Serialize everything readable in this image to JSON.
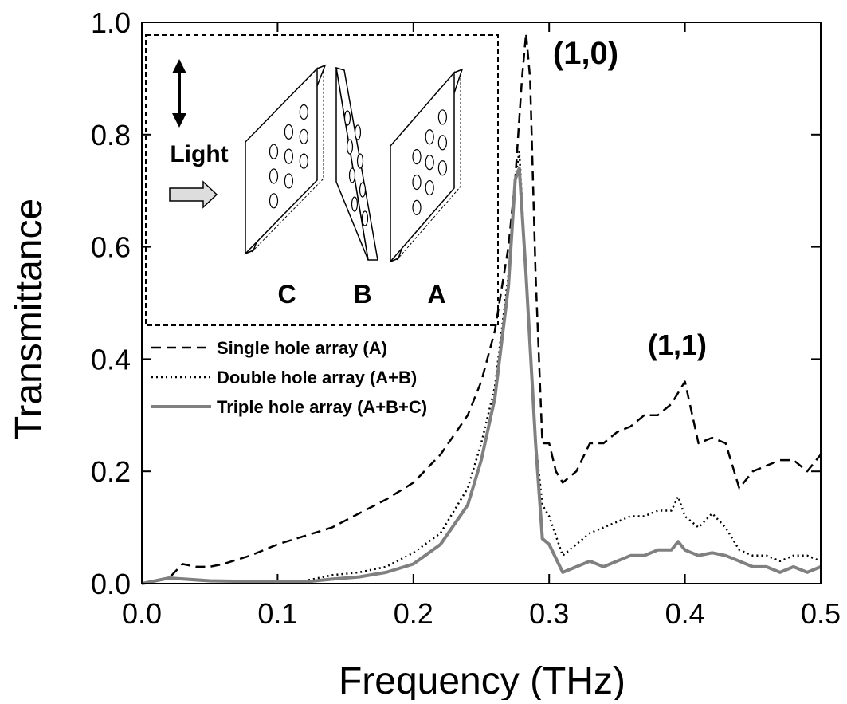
{
  "chart_data": {
    "type": "line",
    "xlabel": "Frequency (THz)",
    "ylabel": "Transmittance",
    "xlim": [
      0,
      0.5
    ],
    "ylim": [
      0,
      1
    ],
    "xticks": [
      {
        "value": 0,
        "label": "0.0"
      },
      {
        "value": 0.1,
        "label": "0.1"
      },
      {
        "value": 0.2,
        "label": "0.2"
      },
      {
        "value": 0.3,
        "label": "0.3"
      },
      {
        "value": 0.4,
        "label": "0.4"
      },
      {
        "value": 0.5,
        "label": "0.5"
      }
    ],
    "yticks": [
      {
        "value": 0,
        "label": "0.0"
      },
      {
        "value": 0.2,
        "label": "0.2"
      },
      {
        "value": 0.4,
        "label": "0.4"
      },
      {
        "value": 0.6,
        "label": "0.6"
      },
      {
        "value": 0.8,
        "label": "0.8"
      },
      {
        "value": 1,
        "label": "1.0"
      }
    ],
    "legend": "upper left",
    "annotations": [
      "(1,0)",
      "(1,1)",
      "Light",
      "C",
      "B",
      "A"
    ],
    "series": [
      {
        "name": "Single hole array (A)",
        "color": "#000000",
        "style": "dashed",
        "x": [
          0,
          0.02,
          0.03,
          0.04,
          0.05,
          0.06,
          0.08,
          0.1,
          0.12,
          0.14,
          0.16,
          0.18,
          0.2,
          0.22,
          0.24,
          0.25,
          0.26,
          0.27,
          0.275,
          0.28,
          0.283,
          0.286,
          0.29,
          0.295,
          0.3,
          0.305,
          0.31,
          0.32,
          0.33,
          0.34,
          0.35,
          0.36,
          0.37,
          0.38,
          0.39,
          0.4,
          0.41,
          0.42,
          0.43,
          0.44,
          0.45,
          0.46,
          0.47,
          0.48,
          0.49,
          0.5
        ],
        "values": [
          0,
          0.01,
          0.035,
          0.03,
          0.03,
          0.035,
          0.05,
          0.07,
          0.085,
          0.1,
          0.125,
          0.15,
          0.18,
          0.23,
          0.3,
          0.36,
          0.45,
          0.6,
          0.72,
          0.9,
          0.98,
          0.9,
          0.55,
          0.25,
          0.25,
          0.2,
          0.18,
          0.2,
          0.25,
          0.25,
          0.27,
          0.28,
          0.3,
          0.3,
          0.32,
          0.36,
          0.25,
          0.26,
          0.25,
          0.17,
          0.2,
          0.21,
          0.22,
          0.22,
          0.2,
          0.23
        ]
      },
      {
        "name": "Double hole array (A+B)",
        "color": "#000000",
        "style": "dotted",
        "x": [
          0,
          0.02,
          0.05,
          0.1,
          0.12,
          0.14,
          0.16,
          0.18,
          0.2,
          0.22,
          0.24,
          0.25,
          0.26,
          0.27,
          0.275,
          0.278,
          0.283,
          0.29,
          0.295,
          0.3,
          0.31,
          0.32,
          0.33,
          0.34,
          0.35,
          0.36,
          0.37,
          0.38,
          0.39,
          0.395,
          0.4,
          0.41,
          0.42,
          0.43,
          0.44,
          0.45,
          0.46,
          0.47,
          0.48,
          0.49,
          0.5
        ],
        "values": [
          0,
          0.01,
          0.005,
          0.005,
          0.005,
          0.015,
          0.02,
          0.03,
          0.055,
          0.09,
          0.17,
          0.25,
          0.35,
          0.55,
          0.72,
          0.77,
          0.55,
          0.25,
          0.14,
          0.12,
          0.05,
          0.07,
          0.09,
          0.1,
          0.11,
          0.12,
          0.12,
          0.13,
          0.13,
          0.155,
          0.12,
          0.1,
          0.125,
          0.1,
          0.06,
          0.05,
          0.05,
          0.04,
          0.05,
          0.05,
          0.04
        ]
      },
      {
        "name": "Triple hole array (A+B+C)",
        "color": "#808080",
        "style": "solid",
        "x": [
          0,
          0.02,
          0.05,
          0.1,
          0.12,
          0.14,
          0.16,
          0.18,
          0.2,
          0.22,
          0.24,
          0.25,
          0.26,
          0.27,
          0.275,
          0.278,
          0.283,
          0.29,
          0.295,
          0.3,
          0.31,
          0.32,
          0.33,
          0.34,
          0.35,
          0.36,
          0.37,
          0.38,
          0.39,
          0.395,
          0.4,
          0.41,
          0.42,
          0.43,
          0.44,
          0.45,
          0.46,
          0.47,
          0.48,
          0.49,
          0.5
        ],
        "values": [
          0,
          0.01,
          0.005,
          0.003,
          0.003,
          0.008,
          0.012,
          0.02,
          0.035,
          0.07,
          0.14,
          0.22,
          0.33,
          0.53,
          0.72,
          0.74,
          0.55,
          0.25,
          0.08,
          0.07,
          0.02,
          0.03,
          0.04,
          0.03,
          0.04,
          0.05,
          0.05,
          0.06,
          0.06,
          0.075,
          0.06,
          0.05,
          0.055,
          0.05,
          0.04,
          0.03,
          0.03,
          0.02,
          0.03,
          0.02,
          0.03
        ]
      }
    ]
  }
}
